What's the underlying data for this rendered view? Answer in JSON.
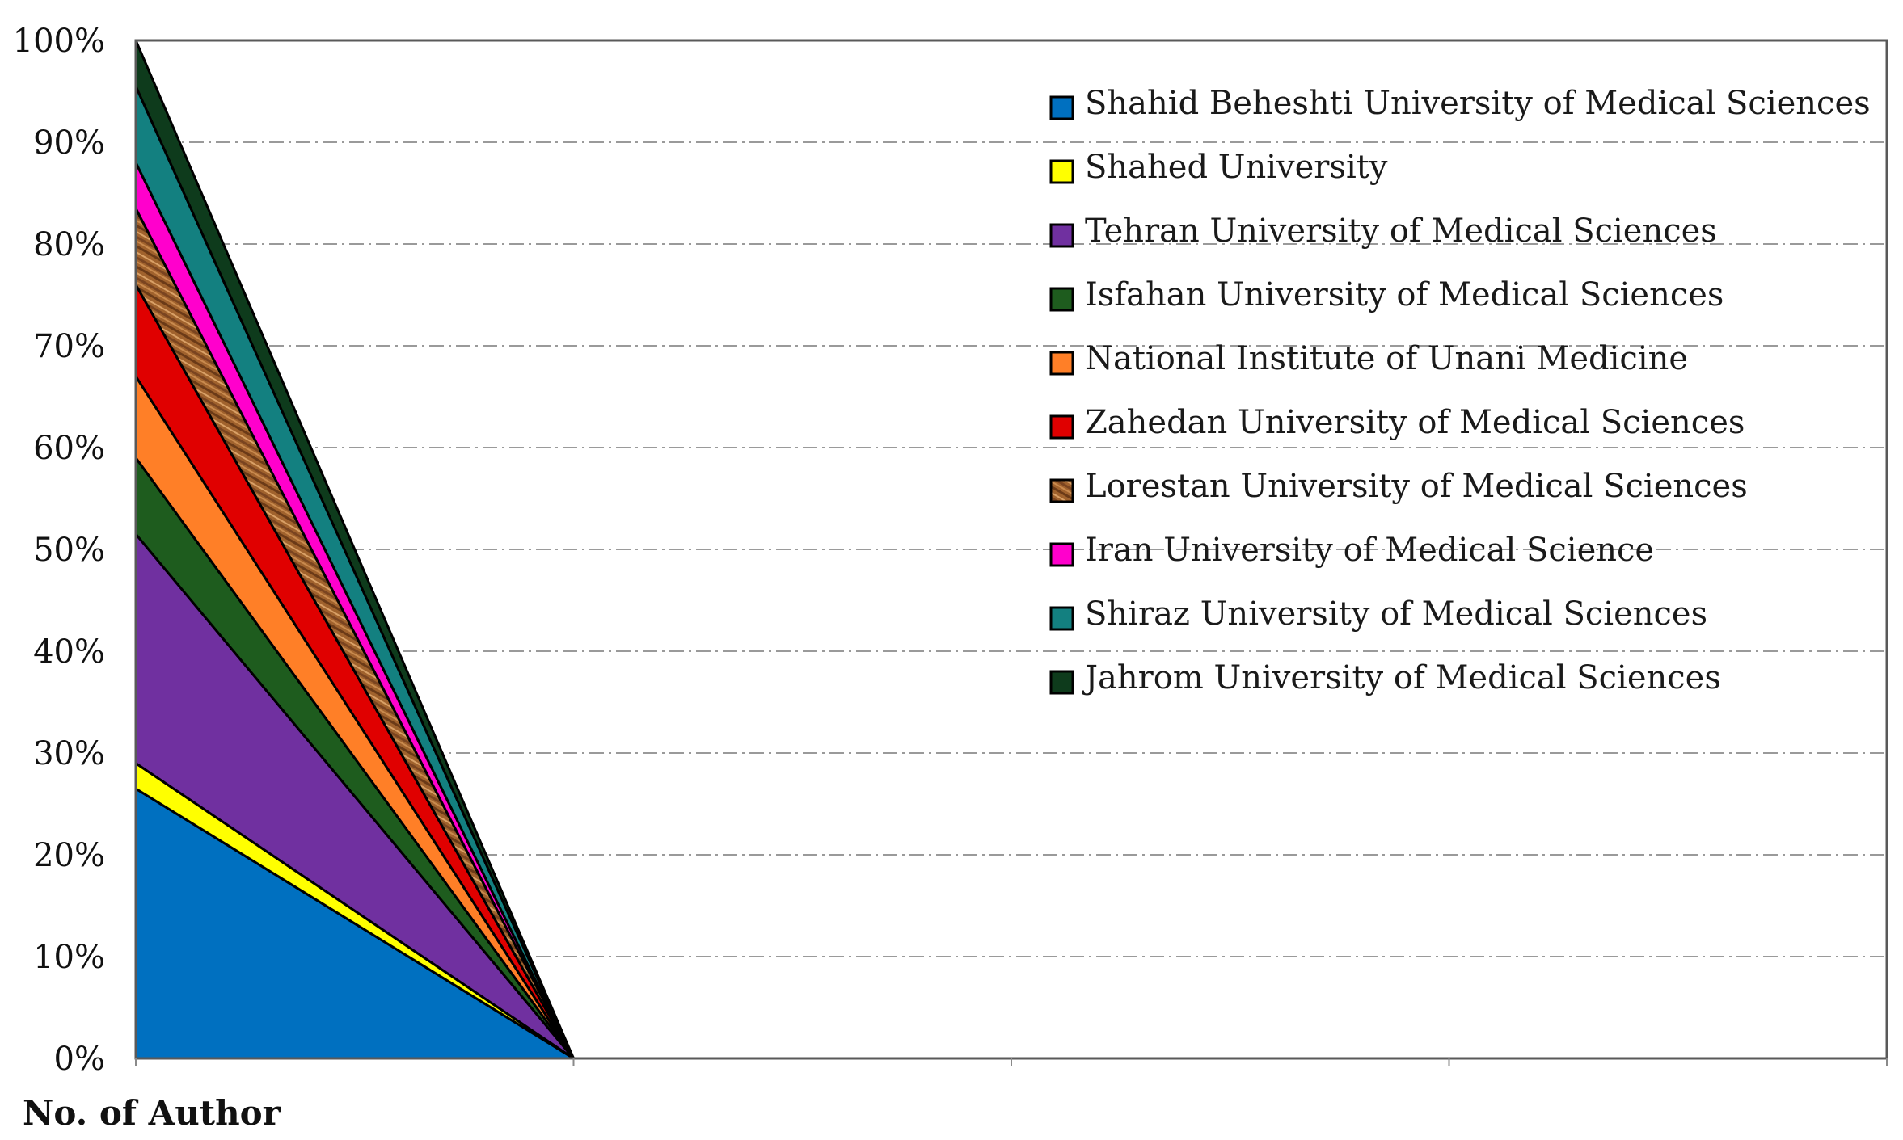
{
  "chart_data": {
    "type": "area",
    "stacking": "percent",
    "xlabel": "No. of Author",
    "ylim": [
      0,
      100
    ],
    "yticks": [
      "0%",
      "10%",
      "20%",
      "30%",
      "40%",
      "50%",
      "60%",
      "70%",
      "80%",
      "90%",
      "100%"
    ],
    "grid": true,
    "legend_position": "top-right",
    "x_categories": 4,
    "series": [
      {
        "name": "Shahid Beheshti University of Medical Sciences",
        "color": "#0070C0",
        "values": [
          26.5,
          0,
          0,
          0
        ]
      },
      {
        "name": "Shahed University",
        "color": "#FFFF00",
        "values": [
          2.5,
          0,
          0,
          0
        ]
      },
      {
        "name": "Tehran University of Medical Sciences",
        "color": "#7030A0",
        "values": [
          22.5,
          0,
          0,
          0
        ]
      },
      {
        "name": "Isfahan University of Medical Sciences",
        "color": "#1E5C1E",
        "values": [
          7.5,
          0,
          0,
          0
        ]
      },
      {
        "name": "National Institute of Unani Medicine",
        "color": "#FF7F27",
        "values": [
          8.0,
          0,
          0,
          0
        ]
      },
      {
        "name": "Zahedan University of Medical Sciences",
        "color": "#E00000",
        "values": [
          9.0,
          0,
          0,
          0
        ]
      },
      {
        "name": "Lorestan University of Medical Sciences",
        "color": "#A0622D",
        "pattern": "wood",
        "values": [
          7.5,
          0,
          0,
          0
        ]
      },
      {
        "name": "Iran University of Medical Science",
        "color": "#FF00CC",
        "values": [
          4.5,
          0,
          0,
          0
        ]
      },
      {
        "name": "Shiraz University of Medical Sciences",
        "color": "#138080",
        "values": [
          7.5,
          0,
          0,
          0
        ]
      },
      {
        "name": "Jahrom University of Medical Sciences",
        "color": "#0E3B1C",
        "values": [
          4.5,
          0,
          0,
          0
        ]
      }
    ]
  }
}
